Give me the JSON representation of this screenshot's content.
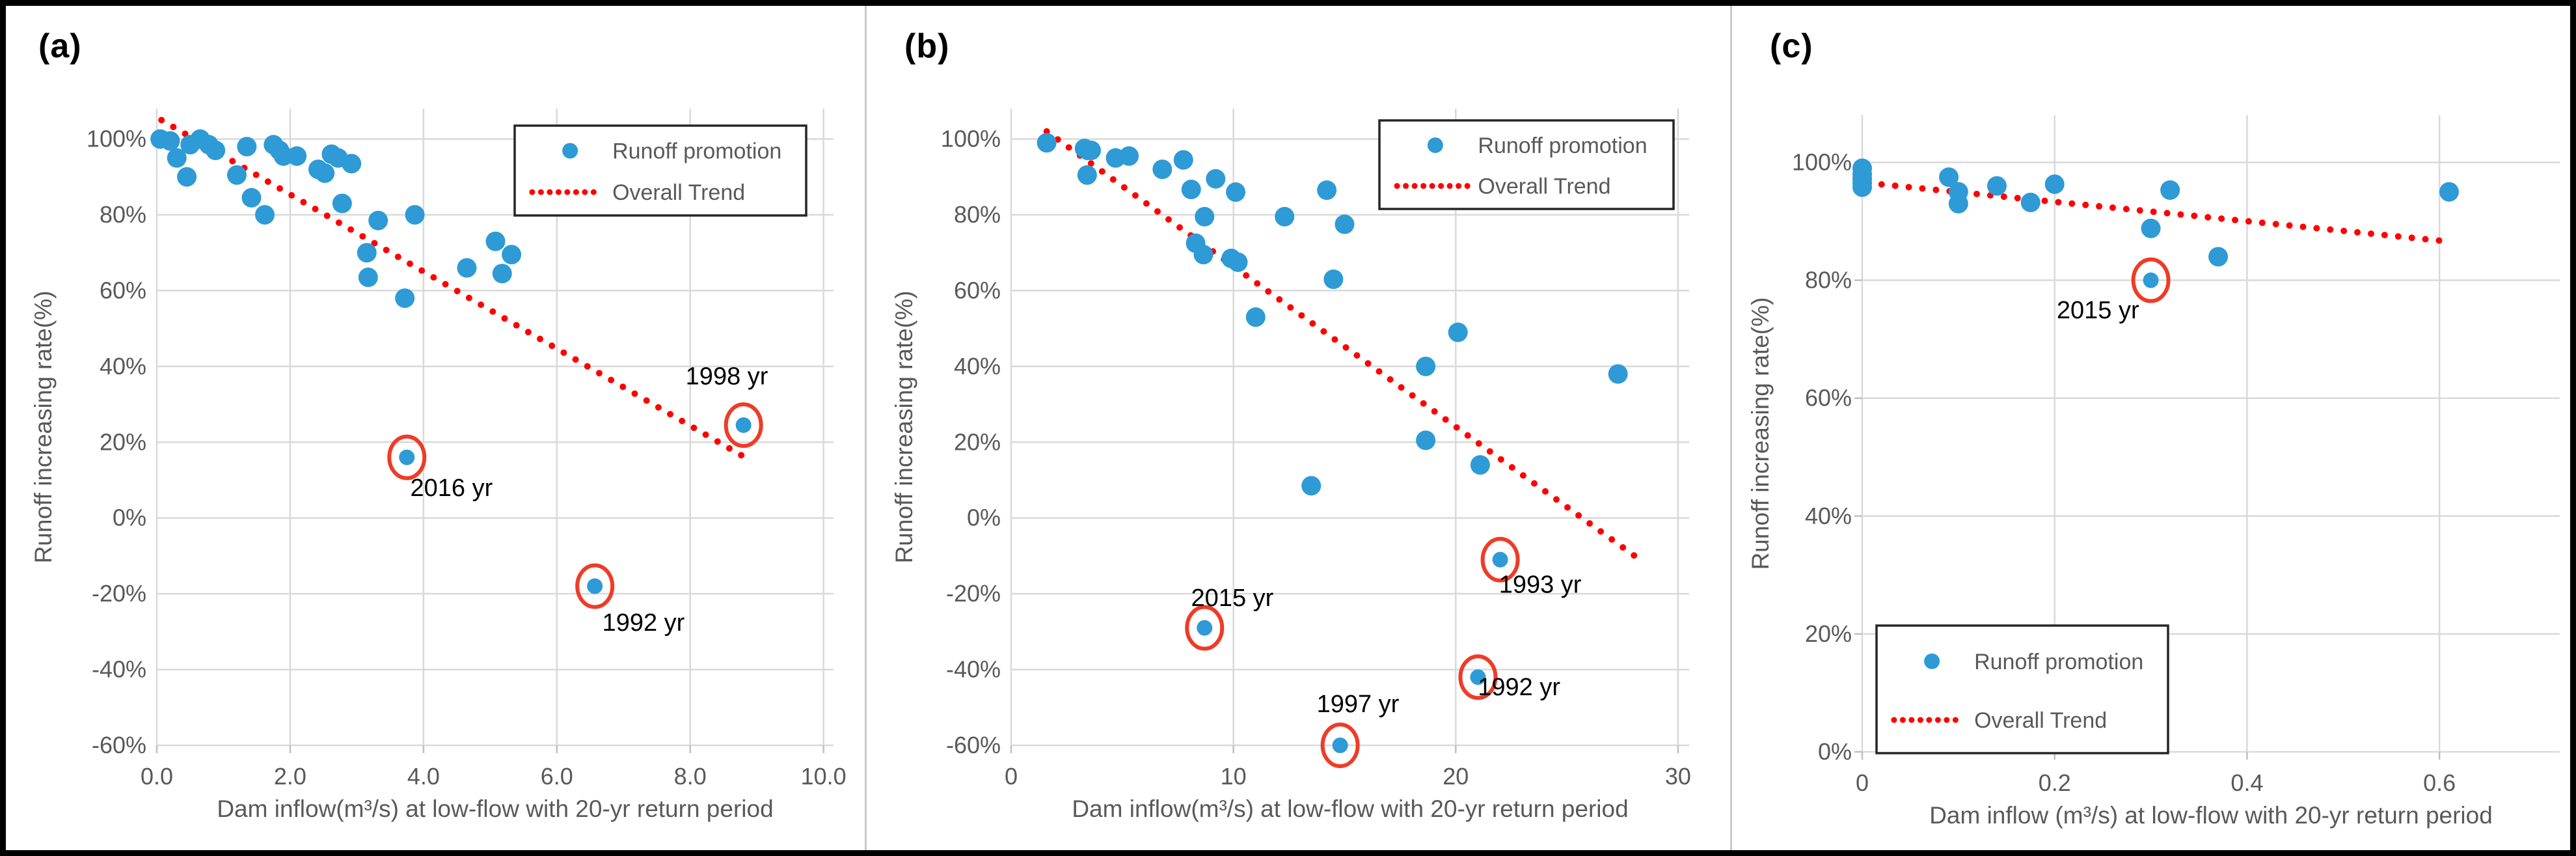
{
  "colors": {
    "marker": "#2E9AD6",
    "trend": "#FF0000",
    "highlight_circle": "#EF3B28",
    "grid": "#D9D9D9",
    "tick": "#BFBFBF",
    "axis_text": "#595959",
    "legend_text": "#595959",
    "legend_border": "#262626",
    "annotation_text": "#000000"
  },
  "chart_data": [
    {
      "panel_label": "(a)",
      "type": "scatter",
      "xlabel": "Dam inflow(m³/s) at low-flow with 20-yr return period",
      "ylabel": "Runoff increasing rate(%)",
      "xlim": [
        0,
        10.15
      ],
      "ylim": [
        -60,
        108
      ],
      "grid": true,
      "xticks": [
        {
          "v": 0,
          "label": "0.0"
        },
        {
          "v": 2,
          "label": "2.0"
        },
        {
          "v": 4,
          "label": "4.0"
        },
        {
          "v": 6,
          "label": "6.0"
        },
        {
          "v": 8,
          "label": "8.0"
        },
        {
          "v": 10,
          "label": "10.0"
        }
      ],
      "yticks": [
        {
          "v": 100,
          "label": "100%"
        },
        {
          "v": 80,
          "label": "80%"
        },
        {
          "v": 60,
          "label": "60%"
        },
        {
          "v": 40,
          "label": "40%"
        },
        {
          "v": 20,
          "label": "20%"
        },
        {
          "v": 0,
          "label": "0%"
        },
        {
          "v": -20,
          "label": "-20%"
        },
        {
          "v": -40,
          "label": "-40%"
        },
        {
          "v": -60,
          "label": "-60%"
        }
      ],
      "legend": {
        "marker_label": "Runoff promotion",
        "trend_label": "Overall Trend",
        "position": "top-right"
      },
      "points": [
        [
          0.05,
          100
        ],
        [
          0.2,
          99.5
        ],
        [
          0.3,
          95
        ],
        [
          0.45,
          90
        ],
        [
          0.5,
          98.5
        ],
        [
          0.65,
          100
        ],
        [
          0.78,
          98.5
        ],
        [
          0.88,
          97
        ],
        [
          1.2,
          90.5
        ],
        [
          1.35,
          98
        ],
        [
          1.42,
          84.5
        ],
        [
          1.62,
          80
        ],
        [
          1.75,
          98.5
        ],
        [
          1.84,
          97
        ],
        [
          1.9,
          95.5
        ],
        [
          2.1,
          95.5
        ],
        [
          2.42,
          92
        ],
        [
          2.52,
          91
        ],
        [
          2.62,
          96
        ],
        [
          2.72,
          95
        ],
        [
          2.78,
          83
        ],
        [
          2.92,
          93.5
        ],
        [
          3.15,
          70
        ],
        [
          3.17,
          63.5
        ],
        [
          3.32,
          78.5
        ],
        [
          3.72,
          58
        ],
        [
          3.87,
          80
        ],
        [
          4.65,
          66
        ],
        [
          5.08,
          73
        ],
        [
          5.18,
          64.5
        ],
        [
          5.32,
          69.5
        ]
      ],
      "annotated_points": [
        {
          "x": 3.75,
          "y": 16,
          "label": "2016 yr",
          "label_x": 4.42,
          "label_y": 8
        },
        {
          "x": 6.57,
          "y": -18,
          "label": "1992 yr",
          "label_x": 7.3,
          "label_y": -27.5
        },
        {
          "x": 8.8,
          "y": 24.5,
          "label": "1998 yr",
          "label_x": 8.55,
          "label_y": 37.5
        }
      ],
      "trend": {
        "x1": 0.07,
        "y1": 105,
        "x2": 8.87,
        "y2": 15.5
      }
    },
    {
      "panel_label": "(b)",
      "type": "scatter",
      "xlabel": "Dam inflow(m³/s) at low-flow with 20-yr return period",
      "ylabel": "Runoff increasing rate(%)",
      "xlim": [
        0,
        30.5
      ],
      "ylim": [
        -60,
        108
      ],
      "grid": true,
      "xticks": [
        {
          "v": 0,
          "label": "0"
        },
        {
          "v": 10,
          "label": "10"
        },
        {
          "v": 20,
          "label": "20"
        },
        {
          "v": 30,
          "label": "30"
        }
      ],
      "yticks": [
        {
          "v": 100,
          "label": "100%"
        },
        {
          "v": 80,
          "label": "80%"
        },
        {
          "v": 60,
          "label": "60%"
        },
        {
          "v": 40,
          "label": "40%"
        },
        {
          "v": 20,
          "label": "20%"
        },
        {
          "v": 0,
          "label": "0%"
        },
        {
          "v": -20,
          "label": "-20%"
        },
        {
          "v": -40,
          "label": "-40%"
        },
        {
          "v": -60,
          "label": "-60%"
        }
      ],
      "legend": {
        "marker_label": "Runoff promotion",
        "trend_label": "Overall Trend",
        "position": "top-right"
      },
      "points": [
        [
          1.6,
          99
        ],
        [
          3.3,
          97.5
        ],
        [
          3.45,
          97
        ],
        [
          3.6,
          97
        ],
        [
          3.42,
          90.5
        ],
        [
          4.7,
          95
        ],
        [
          5.3,
          95.5
        ],
        [
          6.8,
          92
        ],
        [
          7.75,
          94.5
        ],
        [
          8.1,
          86.7
        ],
        [
          8.3,
          72.5
        ],
        [
          8.65,
          69.5
        ],
        [
          8.7,
          79.5
        ],
        [
          9.2,
          89.5
        ],
        [
          9.9,
          68.5
        ],
        [
          10.2,
          67.5
        ],
        [
          10.1,
          86
        ],
        [
          11.0,
          53
        ],
        [
          12.3,
          79.5
        ],
        [
          13.5,
          8.5
        ],
        [
          14.2,
          86.5
        ],
        [
          14.5,
          63
        ],
        [
          15.0,
          77.5
        ],
        [
          18.65,
          40
        ],
        [
          18.65,
          20.5
        ],
        [
          20.1,
          49
        ],
        [
          21.1,
          14
        ],
        [
          27.3,
          38
        ]
      ],
      "annotated_points": [
        {
          "x": 8.7,
          "y": -29,
          "label": "2015 yr",
          "label_x": 9.95,
          "label_y": -21
        },
        {
          "x": 14.8,
          "y": -60,
          "label": "1997 yr",
          "label_x": 15.6,
          "label_y": -49
        },
        {
          "x": 21.0,
          "y": -42,
          "label": "1992 yr",
          "label_x": 22.85,
          "label_y": -44.5
        },
        {
          "x": 22.0,
          "y": -11,
          "label": "1993 yr",
          "label_x": 23.8,
          "label_y": -17.5
        }
      ],
      "trend": {
        "x1": 1.6,
        "y1": 102,
        "x2": 28.4,
        "y2": -11.5
      }
    },
    {
      "panel_label": "(c)",
      "type": "scatter",
      "xlabel": "Dam inflow (m³/s) at low-flow with 20-yr return period",
      "ylabel": "Runoff increasing rate(%)",
      "xlim": [
        0,
        0.725
      ],
      "ylim": [
        0,
        108
      ],
      "grid": true,
      "xticks": [
        {
          "v": 0,
          "label": "0"
        },
        {
          "v": 0.2,
          "label": "0.2"
        },
        {
          "v": 0.4,
          "label": "0.4"
        },
        {
          "v": 0.6,
          "label": "0.6"
        }
      ],
      "yticks": [
        {
          "v": 100,
          "label": "100%"
        },
        {
          "v": 80,
          "label": "80%"
        },
        {
          "v": 60,
          "label": "60%"
        },
        {
          "v": 40,
          "label": "40%"
        },
        {
          "v": 20,
          "label": "20%"
        },
        {
          "v": 0,
          "label": "0%"
        }
      ],
      "legend": {
        "marker_label": "Runoff promotion",
        "trend_label": "Overall Trend",
        "position": "bottom-left"
      },
      "points": [
        [
          0,
          99
        ],
        [
          0,
          98
        ],
        [
          0,
          97.2
        ],
        [
          0,
          96.5
        ],
        [
          0,
          95.8
        ],
        [
          0.09,
          97.5
        ],
        [
          0.1,
          95
        ],
        [
          0.1,
          93
        ],
        [
          0.14,
          96
        ],
        [
          0.175,
          93.2
        ],
        [
          0.2,
          96.3
        ],
        [
          0.3,
          88.8
        ],
        [
          0.32,
          95.3
        ],
        [
          0.37,
          84
        ],
        [
          0.61,
          95
        ]
      ],
      "annotated_points": [
        {
          "x": 0.3,
          "y": 80,
          "label": "2015 yr",
          "label_x": 0.245,
          "label_y": 75
        }
      ],
      "trend": {
        "x1": 0.006,
        "y1": 96.5,
        "x2": 0.602,
        "y2": 86.7
      }
    }
  ]
}
